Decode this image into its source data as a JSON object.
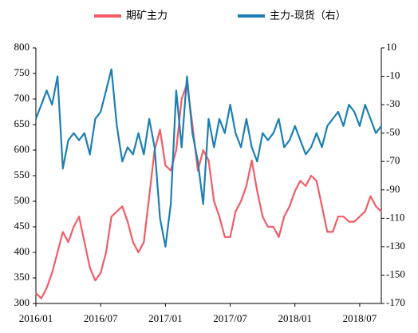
{
  "chart_data": {
    "type": "line",
    "categories": [
      "2016/01",
      null,
      null,
      null,
      null,
      null,
      null,
      null,
      null,
      null,
      null,
      null,
      "2016/07",
      null,
      null,
      null,
      null,
      null,
      null,
      null,
      null,
      null,
      null,
      null,
      "2017/01",
      null,
      null,
      null,
      null,
      null,
      null,
      null,
      null,
      null,
      null,
      null,
      "2017/07",
      null,
      null,
      null,
      null,
      null,
      null,
      null,
      null,
      null,
      null,
      null,
      "2018/01",
      null,
      null,
      null,
      null,
      null,
      null,
      null,
      null,
      null,
      null,
      null,
      "2018/07",
      null,
      null,
      null,
      null
    ],
    "series": [
      {
        "name": "期矿主力",
        "color": "#f25c66",
        "axis": "y",
        "values": [
          320,
          310,
          330,
          360,
          400,
          440,
          420,
          450,
          470,
          420,
          370,
          345,
          360,
          400,
          470,
          480,
          490,
          460,
          420,
          400,
          420,
          510,
          600,
          640,
          570,
          560,
          600,
          700,
          730,
          650,
          560,
          600,
          580,
          500,
          470,
          430,
          430,
          480,
          500,
          530,
          580,
          520,
          470,
          450,
          450,
          430,
          470,
          490,
          520,
          540,
          530,
          550,
          540,
          490,
          440,
          440,
          470,
          470,
          460,
          460,
          470,
          480,
          510,
          490,
          480
        ]
      },
      {
        "name": "主力-现货（右）",
        "color": "#1c7fb3",
        "axis": "y2",
        "values": [
          -40,
          -30,
          -20,
          -30,
          -10,
          -75,
          -55,
          -50,
          -55,
          -50,
          -65,
          -40,
          -35,
          -20,
          -5,
          -45,
          -70,
          -60,
          -65,
          -50,
          -65,
          -40,
          -60,
          -110,
          -130,
          -100,
          -20,
          -60,
          -10,
          -50,
          -70,
          -100,
          -40,
          -60,
          -40,
          -50,
          -30,
          -50,
          -60,
          -40,
          -60,
          -70,
          -50,
          -55,
          -50,
          -40,
          -60,
          -55,
          -45,
          -55,
          -65,
          -60,
          -50,
          -60,
          -45,
          -40,
          -35,
          -45,
          -30,
          -35,
          -45,
          -30,
          -40,
          -50,
          -45
        ]
      }
    ],
    "ylim": [
      300,
      800
    ],
    "yticks": [
      300,
      350,
      400,
      450,
      500,
      550,
      600,
      650,
      700,
      750,
      800
    ],
    "y2lim": [
      -170,
      10
    ],
    "y2ticks": [
      -170,
      -150,
      -130,
      -110,
      -90,
      -70,
      -50,
      -30,
      -10,
      10
    ]
  }
}
